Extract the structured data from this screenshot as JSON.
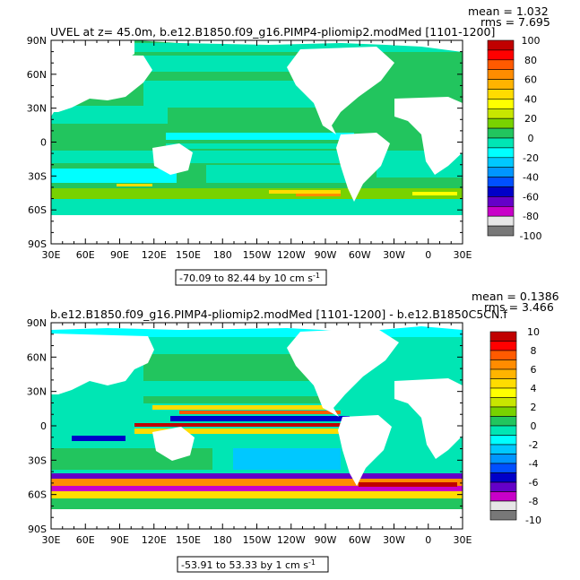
{
  "chart_data": [
    {
      "type": "heatmap",
      "title": "UVEL at z=  45.0m, b.e12.B1850.f09_g16.PIMP4-pliomip2.modMed [1101-1200]",
      "stats": {
        "mean": "mean = 1.032",
        "rms": "rms = 7.695"
      },
      "range_note": "-70.09 to 82.44 by 10 cm s",
      "range_unit_exp": "-1",
      "y_ticks": [
        "90N",
        "60N",
        "30N",
        "0",
        "30S",
        "60S",
        "90S"
      ],
      "x_ticks": [
        "30E",
        "60E",
        "90E",
        "120E",
        "150E",
        "180",
        "150W",
        "120W",
        "90W",
        "60W",
        "30W",
        "0",
        "30E"
      ],
      "colorbar_labels": [
        "100",
        "80",
        "60",
        "40",
        "20",
        "0",
        "-20",
        "-40",
        "-60",
        "-80",
        "-100"
      ],
      "ylim": [
        -90,
        90
      ],
      "xlim": [
        30,
        390
      ],
      "colors": [
        "#c00000",
        "#ff0000",
        "#ff5a00",
        "#ff8c00",
        "#ffb400",
        "#ffdc00",
        "#ffff00",
        "#c8e600",
        "#78d200",
        "#22c55e",
        "#00e6b4",
        "#00ffff",
        "#00c8ff",
        "#0096ff",
        "#0050ff",
        "#0000c8",
        "#6400c8",
        "#c800c8",
        "#e6e6e6",
        "#787878"
      ]
    },
    {
      "type": "heatmap",
      "title": "b.e12.B1850.f09_g16.PIMP4-pliomip2.modMed [1101-1200] - b.e12.B1850C5CN.f",
      "stats": {
        "mean": "mean = 0.1386",
        "rms": "rms = 3.466"
      },
      "range_note": "-53.91 to 53.33 by 1 cm s",
      "range_unit_exp": "-1",
      "y_ticks": [
        "90N",
        "60N",
        "30N",
        "0",
        "30S",
        "60S",
        "90S"
      ],
      "x_ticks": [
        "30E",
        "60E",
        "90E",
        "120E",
        "150E",
        "180",
        "150W",
        "120W",
        "90W",
        "60W",
        "30W",
        "0",
        "30E"
      ],
      "colorbar_labels": [
        "10",
        "8",
        "6",
        "4",
        "2",
        "0",
        "-2",
        "-4",
        "-6",
        "-8",
        "-10"
      ],
      "ylim": [
        -90,
        90
      ],
      "xlim": [
        30,
        390
      ],
      "colors": [
        "#c00000",
        "#ff0000",
        "#ff5a00",
        "#ff8c00",
        "#ffb400",
        "#ffdc00",
        "#ffff00",
        "#c8e600",
        "#78d200",
        "#22c55e",
        "#00e6b4",
        "#00ffff",
        "#00c8ff",
        "#0096ff",
        "#0050ff",
        "#0000c8",
        "#6400c8",
        "#c800c8",
        "#e6e6e6",
        "#787878"
      ]
    }
  ]
}
